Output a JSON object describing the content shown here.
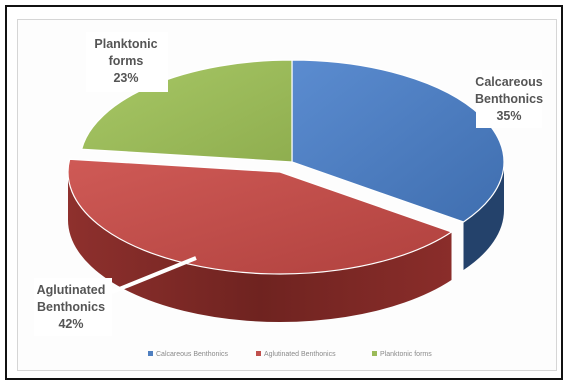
{
  "chart_data": {
    "type": "pie",
    "style": "3d",
    "title": "",
    "slices": [
      {
        "name": "Calcareous Benthonics",
        "label_lines": [
          "Calcareous",
          "Benthonics",
          "35%"
        ],
        "value": 35,
        "color": "#4f7fc0",
        "side_color": "#24426b"
      },
      {
        "name": "Aglutinated Benthonics",
        "label_lines": [
          "Aglutinated",
          "Benthonics",
          "42%"
        ],
        "value": 42,
        "color": "#c0504d",
        "side_color": "#7f2a27"
      },
      {
        "name": "Planktonic forms",
        "label_lines": [
          "Planktonic",
          "forms",
          "23%"
        ],
        "value": 23,
        "color": "#9bbb59",
        "side_color": "#5e7a2c"
      }
    ],
    "legend": {
      "placement": "bottom",
      "entries": [
        "Calcareous Benthonics",
        "Aglutinated Benthonics",
        "Planktonic forms"
      ]
    }
  }
}
